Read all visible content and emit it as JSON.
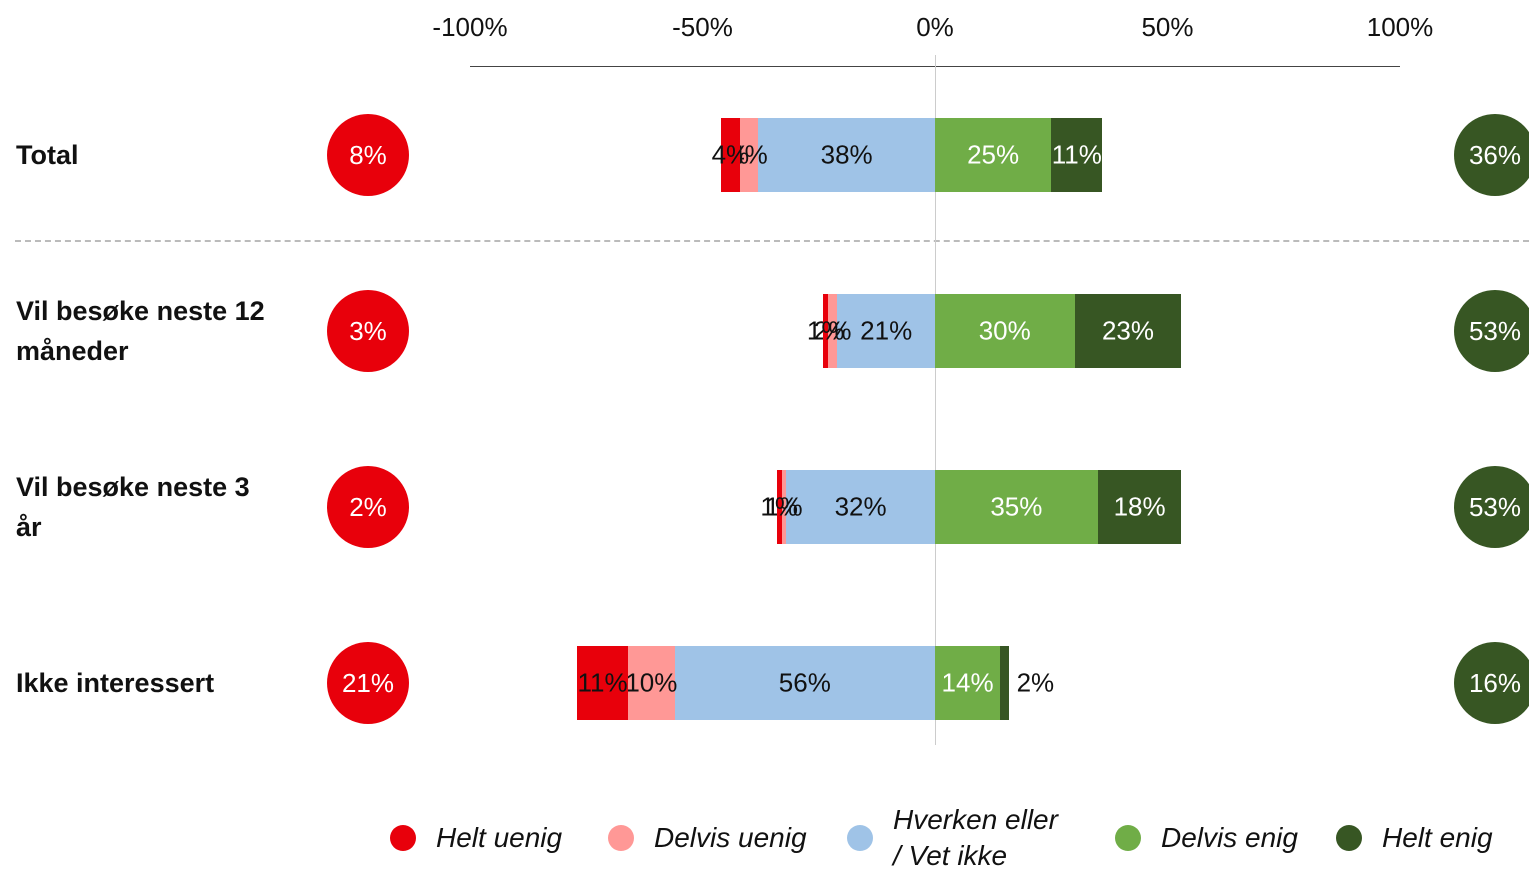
{
  "chart_data": {
    "type": "diverging_bar",
    "categories": [
      "Total",
      "Vil besøke neste 12 måneder",
      "Vil besøke neste 3 år",
      "Ikke interessert"
    ],
    "xlim": [
      -100,
      100
    ],
    "xticks": [
      {
        "value": -100,
        "label": "-100%"
      },
      {
        "value": -50,
        "label": "-50%"
      },
      {
        "value": 0,
        "label": "0%"
      },
      {
        "value": 50,
        "label": "50%"
      },
      {
        "value": 100,
        "label": "100%"
      }
    ],
    "series": [
      {
        "name": "Helt uenig",
        "color": "#e8000b",
        "values": [
          4,
          1,
          1,
          11
        ],
        "value_labels": [
          "4%",
          "1%",
          "1%",
          "11%"
        ]
      },
      {
        "name": "Delvis uenig",
        "color": "#ff9896",
        "values": [
          4,
          2,
          1,
          10
        ],
        "value_labels": [
          "4%",
          "2%",
          "1%",
          "10%"
        ]
      },
      {
        "name": "Hverken eller / Vet ikke",
        "color": "#9fc3e7",
        "values": [
          38,
          21,
          32,
          56
        ],
        "value_labels": [
          "38%",
          "21%",
          "32%",
          "56%"
        ]
      },
      {
        "name": "Delvis enig",
        "color": "#70ad47",
        "values": [
          25,
          30,
          35,
          14
        ],
        "value_labels": [
          "25%",
          "30%",
          "35%",
          "14%"
        ]
      },
      {
        "name": "Helt enig",
        "color": "#375623",
        "values": [
          11,
          23,
          18,
          2
        ],
        "value_labels": [
          "11%",
          "23%",
          "18%",
          "2%"
        ]
      }
    ],
    "disagree_totals": {
      "color": "#e8000b",
      "values": [
        8,
        3,
        2,
        21
      ],
      "value_labels": [
        "8%",
        "3%",
        "2%",
        "21%"
      ]
    },
    "agree_totals": {
      "color": "#375623",
      "values": [
        36,
        53,
        53,
        16
      ],
      "value_labels": [
        "36%",
        "53%",
        "53%",
        "16%"
      ]
    }
  }
}
